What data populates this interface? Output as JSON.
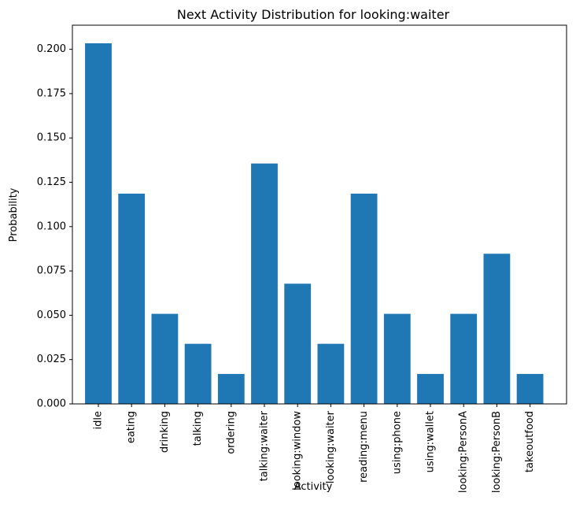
{
  "chart_data": {
    "type": "bar",
    "title": "Next Activity Distribution for looking:waiter",
    "xlabel": "Activity",
    "ylabel": "Probability",
    "categories": [
      "idle",
      "eating",
      "drinking",
      "talking",
      "ordering",
      "talking:waiter",
      "looking:window",
      "looking:waiter",
      "reading:menu",
      "using:phone",
      "using:wallet",
      "looking:PersonA",
      "looking:PersonB",
      "takeoutfood"
    ],
    "values": [
      0.2034,
      0.1186,
      0.0508,
      0.0339,
      0.0169,
      0.1356,
      0.0678,
      0.0339,
      0.1186,
      0.0508,
      0.0169,
      0.0508,
      0.0847,
      0.0169
    ],
    "ylim": [
      0,
      0.2136
    ],
    "yticks": [
      "0.000",
      "0.025",
      "0.050",
      "0.075",
      "0.100",
      "0.125",
      "0.150",
      "0.175",
      "0.200"
    ],
    "grid": false,
    "legend": "none",
    "bar_color": "#1f77b4"
  }
}
